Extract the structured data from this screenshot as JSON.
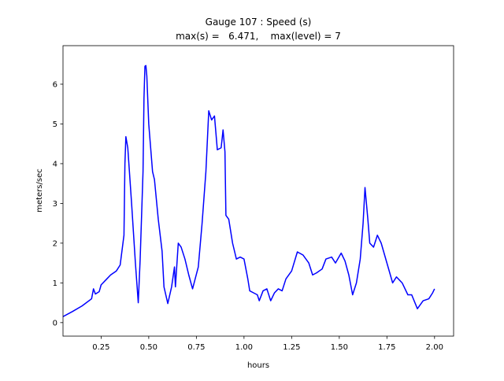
{
  "chart_data": {
    "type": "line",
    "title": "Gauge 107 : Speed (s)",
    "subtitle": "max(s) =   6.471,    max(level) = 7",
    "xlabel": "hours",
    "ylabel": "meters/sec",
    "x": [
      0.05,
      0.1,
      0.15,
      0.2,
      0.21,
      0.22,
      0.24,
      0.25,
      0.28,
      0.3,
      0.33,
      0.35,
      0.37,
      0.375,
      0.38,
      0.39,
      0.41,
      0.43,
      0.445,
      0.455,
      0.47,
      0.475,
      0.48,
      0.485,
      0.49,
      0.5,
      0.51,
      0.52,
      0.53,
      0.55,
      0.57,
      0.58,
      0.6,
      0.62,
      0.635,
      0.64,
      0.655,
      0.67,
      0.69,
      0.71,
      0.73,
      0.76,
      0.78,
      0.8,
      0.815,
      0.83,
      0.845,
      0.86,
      0.88,
      0.89,
      0.9,
      0.905,
      0.92,
      0.94,
      0.96,
      0.98,
      1.0,
      1.02,
      1.03,
      1.05,
      1.07,
      1.08,
      1.1,
      1.12,
      1.14,
      1.16,
      1.18,
      1.2,
      1.22,
      1.25,
      1.28,
      1.31,
      1.34,
      1.36,
      1.38,
      1.41,
      1.43,
      1.46,
      1.48,
      1.51,
      1.53,
      1.55,
      1.57,
      1.59,
      1.61,
      1.625,
      1.635,
      1.65,
      1.66,
      1.68,
      1.7,
      1.72,
      1.75,
      1.78,
      1.8,
      1.83,
      1.86,
      1.88,
      1.91,
      1.94,
      1.97,
      1.99,
      2.0
    ],
    "series": [
      {
        "name": "s",
        "color": "#0000ff",
        "values": [
          0.15,
          0.28,
          0.42,
          0.6,
          0.85,
          0.72,
          0.78,
          0.95,
          1.1,
          1.2,
          1.3,
          1.45,
          2.2,
          4.0,
          4.68,
          4.4,
          3.0,
          1.5,
          0.5,
          1.6,
          3.8,
          5.65,
          6.45,
          6.47,
          6.2,
          5.0,
          4.4,
          3.8,
          3.6,
          2.6,
          1.8,
          0.9,
          0.48,
          0.9,
          1.4,
          0.9,
          2.0,
          1.9,
          1.6,
          1.2,
          0.85,
          1.4,
          2.5,
          3.8,
          5.33,
          5.1,
          5.2,
          4.35,
          4.4,
          4.85,
          4.3,
          2.7,
          2.6,
          2.0,
          1.6,
          1.65,
          1.6,
          1.1,
          0.8,
          0.75,
          0.7,
          0.55,
          0.8,
          0.85,
          0.55,
          0.75,
          0.85,
          0.8,
          1.1,
          1.3,
          1.78,
          1.7,
          1.5,
          1.2,
          1.25,
          1.35,
          1.6,
          1.65,
          1.5,
          1.75,
          1.55,
          1.2,
          0.7,
          1.0,
          1.6,
          2.5,
          3.4,
          2.6,
          2.0,
          1.9,
          2.2,
          2.0,
          1.5,
          1.0,
          1.15,
          1.0,
          0.7,
          0.7,
          0.35,
          0.55,
          0.6,
          0.75,
          0.85
        ]
      }
    ],
    "xlim": [
      0.05,
      2.1
    ],
    "ylim": [
      -0.34,
      6.97
    ],
    "xticks": [
      0.25,
      {
        "value": 0.5,
        "label": "0.50"
      },
      0.75,
      {
        "value": 1,
        "label": "1.00"
      },
      1.25,
      {
        "value": 1.5,
        "label": "1.50"
      },
      1.75,
      {
        "value": 2,
        "label": "2.00"
      }
    ],
    "yticks": [
      0,
      1,
      2,
      3,
      4,
      5,
      6
    ],
    "grid": false
  }
}
